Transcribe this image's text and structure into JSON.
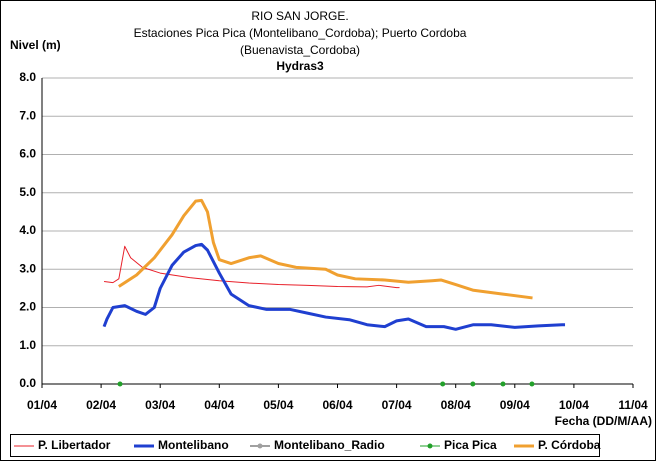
{
  "chart_data": {
    "type": "line",
    "title": "RIO SAN JORGE.",
    "subtitle": [
      "Estaciones Pica Pica (Montelibano_Cordoba); Puerto Cordoba",
      "(Buenavista_Cordoba)"
    ],
    "source": "Hydras3",
    "y_label": "Nivel (m)",
    "x_label": "Fecha (DD/M/AA)",
    "xlim": [
      1,
      11
    ],
    "xticks": [
      {
        "value": 1,
        "label": "01/04"
      },
      {
        "value": 2,
        "label": "02/04"
      },
      {
        "value": 3,
        "label": "03/04"
      },
      {
        "value": 4,
        "label": "04/04"
      },
      {
        "value": 5,
        "label": "05/04"
      },
      {
        "value": 6,
        "label": "06/04"
      },
      {
        "value": 7,
        "label": "07/04"
      },
      {
        "value": 8,
        "label": "08/04"
      },
      {
        "value": 9,
        "label": "09/04"
      },
      {
        "value": 10,
        "label": "10/04"
      },
      {
        "value": 11,
        "label": "11/04"
      }
    ],
    "ylim": [
      0,
      8
    ],
    "yticks": [
      {
        "value": 0,
        "label": "0.0"
      },
      {
        "value": 1,
        "label": "1.0"
      },
      {
        "value": 2,
        "label": "2.0"
      },
      {
        "value": 3,
        "label": "3.0"
      },
      {
        "value": 4,
        "label": "4.0"
      },
      {
        "value": 5,
        "label": "5.0"
      },
      {
        "value": 6,
        "label": "6.0"
      },
      {
        "value": 7,
        "label": "7.0"
      },
      {
        "value": 8,
        "label": "8.0"
      }
    ],
    "grid": true,
    "legend": "bottom",
    "series": [
      {
        "name": "P. Libertador",
        "color": "#e8202a",
        "width": 1,
        "markers": false,
        "line": true,
        "x": [
          2.05,
          2.2,
          2.3,
          2.4,
          2.5,
          2.7,
          3.0,
          3.5,
          4.0,
          4.5,
          5.0,
          5.5,
          6.0,
          6.5,
          6.7,
          7.0,
          7.05
        ],
        "values": [
          2.68,
          2.65,
          2.75,
          3.6,
          3.3,
          3.05,
          2.9,
          2.78,
          2.7,
          2.64,
          2.6,
          2.58,
          2.55,
          2.54,
          2.58,
          2.52,
          2.52
        ]
      },
      {
        "name": "Montelibano",
        "color": "#1f3fd0",
        "width": 3,
        "markers": false,
        "line": true,
        "x": [
          2.05,
          2.1,
          2.2,
          2.4,
          2.6,
          2.75,
          2.9,
          3.0,
          3.2,
          3.4,
          3.6,
          3.7,
          3.8,
          4.0,
          4.2,
          4.5,
          4.8,
          5.2,
          5.5,
          5.8,
          6.2,
          6.5,
          6.8,
          7.0,
          7.2,
          7.5,
          7.8,
          8.0,
          8.3,
          8.6,
          9.0,
          9.4,
          9.8,
          9.85
        ],
        "values": [
          1.5,
          1.7,
          2.0,
          2.05,
          1.9,
          1.82,
          2.0,
          2.5,
          3.1,
          3.45,
          3.62,
          3.65,
          3.5,
          2.9,
          2.35,
          2.05,
          1.95,
          1.95,
          1.85,
          1.75,
          1.68,
          1.55,
          1.5,
          1.65,
          1.7,
          1.5,
          1.5,
          1.43,
          1.55,
          1.55,
          1.48,
          1.52,
          1.55,
          1.55
        ]
      },
      {
        "name": "Montelibano_Radio",
        "color": "#a0a0a0",
        "width": 2,
        "markers": true,
        "line": true,
        "x": [],
        "values": []
      },
      {
        "name": "Pica Pica",
        "color": "#22a02a",
        "width": 1,
        "markers": true,
        "line": false,
        "x": [
          2.32,
          7.78,
          8.29,
          8.8,
          9.29
        ],
        "values": [
          0,
          0,
          0,
          0,
          0
        ]
      },
      {
        "name": "P. Córdoba",
        "color": "#f0a030",
        "width": 3,
        "markers": false,
        "line": true,
        "x": [
          2.3,
          2.6,
          2.9,
          3.2,
          3.4,
          3.6,
          3.7,
          3.8,
          3.9,
          4.0,
          4.2,
          4.5,
          4.7,
          5.0,
          5.3,
          5.8,
          6.0,
          6.3,
          6.8,
          7.2,
          7.6,
          7.75,
          8.0,
          8.3,
          8.8,
          9.3
        ],
        "values": [
          2.55,
          2.85,
          3.3,
          3.9,
          4.4,
          4.78,
          4.8,
          4.5,
          3.7,
          3.25,
          3.15,
          3.3,
          3.35,
          3.15,
          3.05,
          3.0,
          2.85,
          2.75,
          2.72,
          2.66,
          2.7,
          2.72,
          2.6,
          2.45,
          2.35,
          2.25
        ]
      }
    ]
  }
}
